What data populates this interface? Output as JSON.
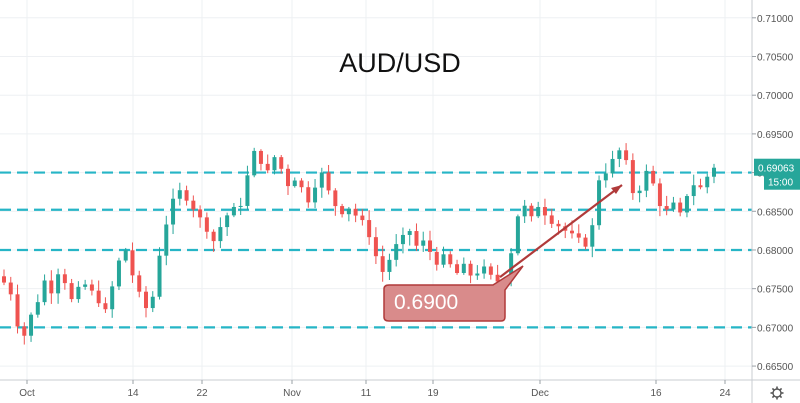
{
  "chart_data": {
    "type": "candlestick",
    "title": "AUD/USD",
    "price_axis": {
      "ticks": [
        "0.71000",
        "0.70500",
        "0.70000",
        "0.69500",
        "0.69000",
        "0.68500",
        "0.68000",
        "0.67500",
        "0.67000",
        "0.66500"
      ],
      "range": [
        0.6632,
        0.7123
      ]
    },
    "time_axis": {
      "labels": [
        "Oct",
        "14",
        "22",
        "Nov",
        "11",
        "19",
        "Dec",
        "16",
        "24"
      ]
    },
    "current_price": "0.69063",
    "countdown": "15:00",
    "horizontal_levels": [
      0.69,
      0.6852,
      0.68,
      0.67
    ],
    "callout": {
      "text": "0.6900"
    },
    "trend_line": {
      "from": 0.6765,
      "to": 0.6884
    },
    "grid": true,
    "colors": {
      "up": "#26a69a",
      "down": "#ef5350",
      "level_line": "#26b5c6",
      "callout_fill": "#d98b8b",
      "callout_border": "#b03a3a",
      "price_tag": "#26a69a",
      "grid": "#eef0f3"
    },
    "series": {
      "close_path": [
        0.6758,
        0.6745,
        0.6705,
        0.669,
        0.6715,
        0.6735,
        0.676,
        0.6748,
        0.6772,
        0.676,
        0.6735,
        0.6748,
        0.6755,
        0.6745,
        0.6735,
        0.672,
        0.6752,
        0.6785,
        0.68,
        0.6768,
        0.6742,
        0.6725,
        0.674,
        0.6795,
        0.6835,
        0.6862,
        0.6875,
        0.6868,
        0.6855,
        0.684,
        0.6828,
        0.6812,
        0.683,
        0.6845,
        0.6852,
        0.686,
        0.6895,
        0.6925,
        0.6915,
        0.69,
        0.692,
        0.6905,
        0.6885,
        0.6893,
        0.688,
        0.6865,
        0.6885,
        0.6898,
        0.6875,
        0.6858,
        0.685,
        0.6855,
        0.6845,
        0.6835,
        0.682,
        0.6792,
        0.6772,
        0.6788,
        0.6805,
        0.6815,
        0.6825,
        0.6805,
        0.681,
        0.6798,
        0.6785,
        0.679,
        0.678,
        0.677,
        0.6778,
        0.6768,
        0.6772,
        0.6775,
        0.6765,
        0.676,
        0.6765,
        0.6798,
        0.6845,
        0.6855,
        0.684,
        0.6858,
        0.6848,
        0.6838,
        0.6832,
        0.6825,
        0.6818,
        0.6812,
        0.6808,
        0.683,
        0.6892,
        0.6902,
        0.6915,
        0.6928,
        0.6912,
        0.6875,
        0.688,
        0.69,
        0.6885,
        0.686,
        0.685,
        0.6858,
        0.6845,
        0.6872,
        0.6885,
        0.688,
        0.6895,
        0.6906
      ]
    }
  },
  "icons": {
    "settings": "gear-icon"
  }
}
